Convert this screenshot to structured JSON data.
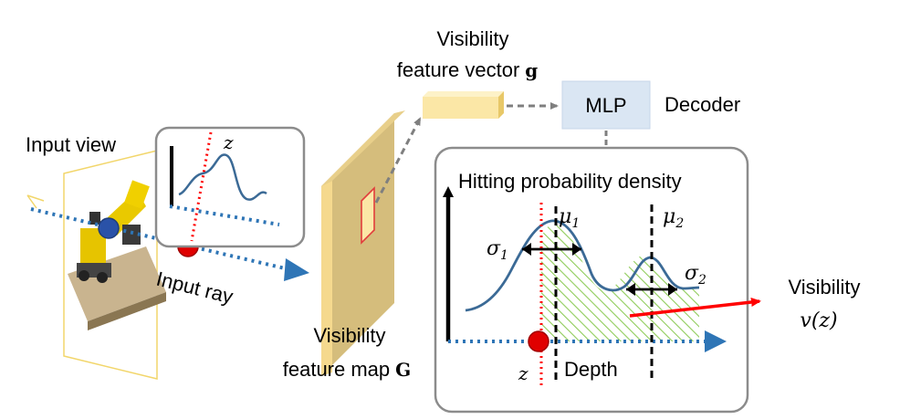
{
  "labels": {
    "input_view": "Input view",
    "input_ray": "Input ray",
    "z_symbol": "z",
    "feature_vector_line1": "Visibility",
    "feature_vector_line2": "feature vector",
    "feature_vector_symbol": "g",
    "mlp": "MLP",
    "decoder": "Decoder",
    "feature_map_line1": "Visibility",
    "feature_map_line2": "feature map",
    "feature_map_symbol": "G",
    "hitting_prob": "Hitting probability density",
    "mu1_base": "μ",
    "mu1_sub": "1",
    "mu2_base": "μ",
    "mu2_sub": "2",
    "sigma1_base": "σ",
    "sigma1_sub": "1",
    "sigma2_base": "σ",
    "sigma2_sub": "2",
    "depth": "Depth",
    "visibility": "Visibility",
    "visibility_fn": "v(z)"
  },
  "colors": {
    "ray_blue": "#2e75b6",
    "arrow_red": "#ff0000",
    "curve_blue": "#3b6a96",
    "feature_tan": "#d8bf7f",
    "feature_vector_yellow": "#fbe7a6",
    "mlp_fill": "#dae6f3",
    "hatch_green": "#8fcc5a",
    "frame_gray": "#8c8c8c"
  }
}
